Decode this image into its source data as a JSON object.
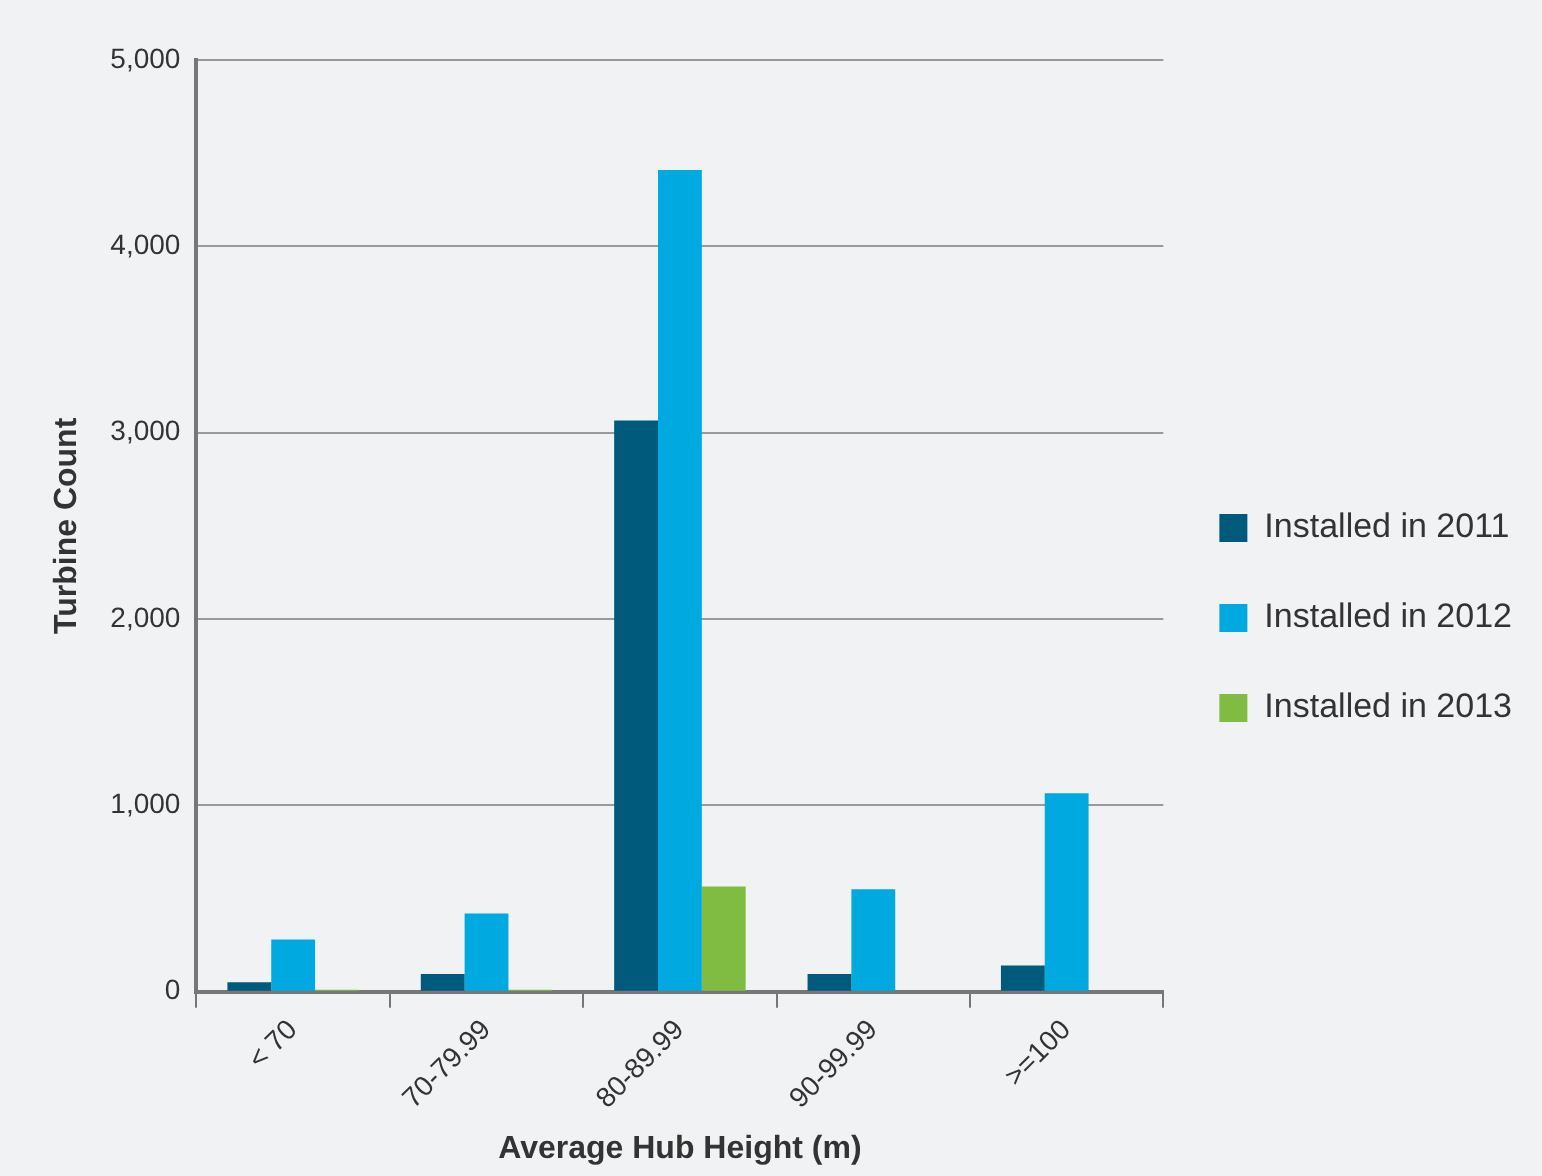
{
  "chart_data": {
    "type": "bar",
    "xlabel": "Average Hub Height (m)",
    "ylabel": "Turbine Count",
    "categories": [
      "< 70",
      "70-79.99",
      "80-89.99",
      "90-99.99",
      ">=100"
    ],
    "series": [
      {
        "name": "Installed in 2011",
        "color": "#005a7c",
        "values": [
          50,
          95,
          3065,
          95,
          140
        ]
      },
      {
        "name": "Installed in 2012",
        "color": "#00a9e0",
        "values": [
          280,
          420,
          4410,
          550,
          1065
        ]
      },
      {
        "name": "Installed in 2013",
        "color": "#80bc42",
        "values": [
          10,
          10,
          565,
          0,
          0
        ]
      }
    ],
    "ylim": [
      0,
      5000
    ],
    "yticks": [
      {
        "value": 0,
        "label": "0"
      },
      {
        "value": 1000,
        "label": "1,000"
      },
      {
        "value": 2000,
        "label": "2,000"
      },
      {
        "value": 3000,
        "label": "3,000"
      },
      {
        "value": 4000,
        "label": "4,000"
      },
      {
        "value": 5000,
        "label": "5,000"
      }
    ],
    "grid": "y",
    "legend": "right"
  }
}
